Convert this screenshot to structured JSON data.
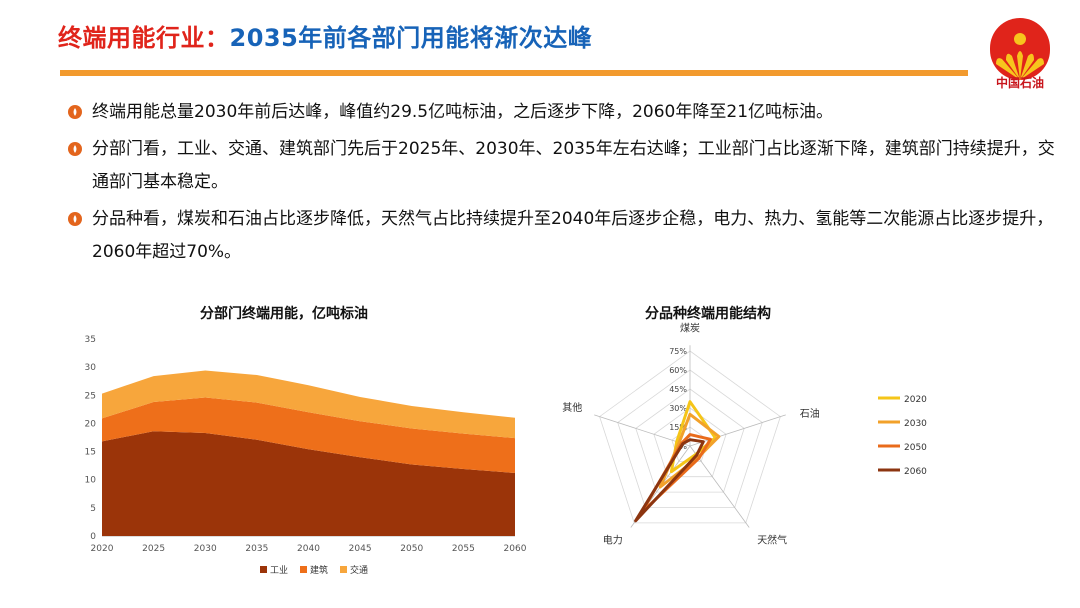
{
  "header": {
    "title_part1": "终端用能行业：",
    "title_part2": "2035年前各部门用能将渐次达峰",
    "logo_text": "中国石油"
  },
  "bullets": [
    {
      "text": "终端用能总量2030年前后达峰，峰值约29.5亿吨标油，之后逐步下降，2060年降至21亿吨标油。"
    },
    {
      "text": "分部门看，工业、交通、建筑部门先后于2025年、2030年、2035年左右达峰；工业部门占比逐渐下降，建筑部门持续提升，交通部门基本稳定。"
    },
    {
      "text": "分品种看，煤炭和石油占比逐步降低，天然气占比持续提升至2040年后逐步企稳，电力、热力、氢能等二次能源占比逐步提升，2060年超过70%。"
    }
  ],
  "colors": {
    "accent_orange": "#f29a2e",
    "title_red": "#e0241b",
    "title_blue": "#1763b8"
  },
  "chart_data": [
    {
      "type": "area",
      "title": "分部门终端用能，亿吨标油",
      "x": [
        "2020",
        "2025",
        "2030",
        "2035",
        "2040",
        "2045",
        "2050",
        "2055",
        "2060"
      ],
      "ylim": [
        0,
        35
      ],
      "yticks": [
        0,
        5,
        10,
        15,
        20,
        25,
        30,
        35
      ],
      "stacked": true,
      "series": [
        {
          "name": "工业",
          "color": "#9b3409",
          "values": [
            16.8,
            18.6,
            18.3,
            17.1,
            15.4,
            14.0,
            12.7,
            11.9,
            11.2
          ]
        },
        {
          "name": "建筑",
          "color": "#ee6f1a",
          "values": [
            4.1,
            5.2,
            6.3,
            6.6,
            6.6,
            6.4,
            6.4,
            6.3,
            6.2
          ]
        },
        {
          "name": "交通",
          "color": "#f7a63c",
          "values": [
            4.4,
            4.6,
            4.8,
            4.9,
            4.8,
            4.3,
            4.0,
            3.8,
            3.6
          ]
        }
      ],
      "legend": "bottom"
    },
    {
      "type": "radar",
      "title": "分品种终端用能结构",
      "axes": [
        "煤炭",
        "石油",
        "天然气",
        "电力",
        "其他"
      ],
      "rlim": [
        0,
        75
      ],
      "rticks": [
        "0%",
        "15%",
        "30%",
        "45%",
        "60%",
        "75%"
      ],
      "series": [
        {
          "name": "2020",
          "color": "#f5c518",
          "values": [
            35,
            21,
            8,
            25,
            11
          ]
        },
        {
          "name": "2030",
          "color": "#f2a12a",
          "values": [
            25,
            24,
            11,
            40,
            9
          ]
        },
        {
          "name": "2050",
          "color": "#e96b1b",
          "values": [
            9,
            17,
            12,
            65,
            7
          ]
        },
        {
          "name": "2060",
          "color": "#8c3510",
          "values": [
            5,
            11,
            9,
            73,
            6
          ]
        }
      ],
      "legend": "right"
    }
  ]
}
